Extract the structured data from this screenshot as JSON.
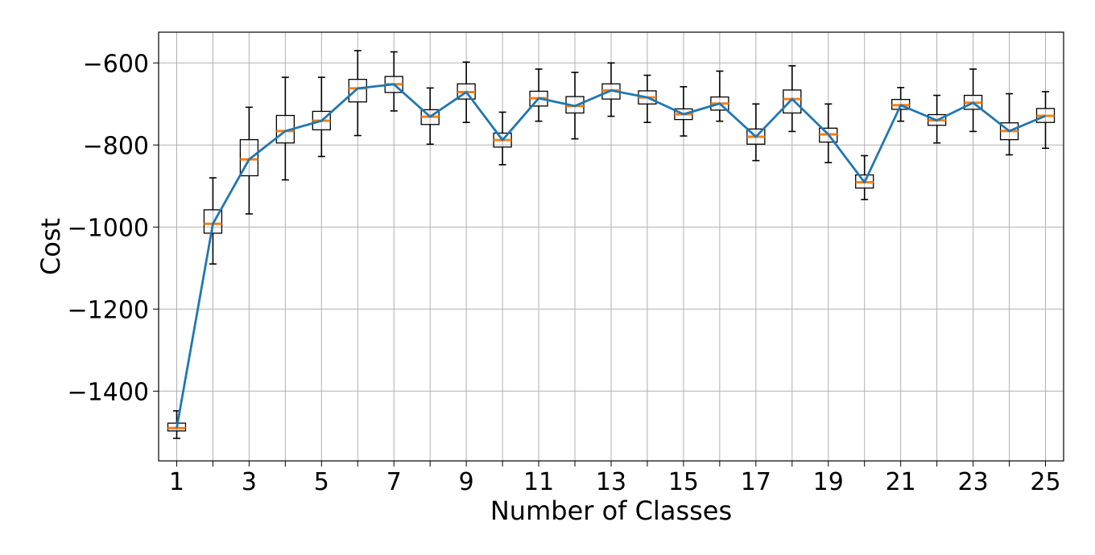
{
  "chart_data": {
    "type": "box",
    "title": "",
    "xlabel": "Number of Classes",
    "ylabel": "Cost",
    "x": [
      1,
      2,
      3,
      4,
      5,
      6,
      7,
      8,
      9,
      10,
      11,
      12,
      13,
      14,
      15,
      16,
      17,
      18,
      19,
      20,
      21,
      22,
      23,
      24,
      25
    ],
    "xlim": [
      0.5,
      25.5
    ],
    "ylim": [
      -1570,
      -525
    ],
    "x_tick_labels": [
      1,
      3,
      5,
      7,
      9,
      11,
      13,
      15,
      17,
      19,
      21,
      23,
      25
    ],
    "y_ticks": [
      -600,
      -800,
      -1000,
      -1200,
      -1400
    ],
    "y_tick_labels": [
      "−600",
      "−800",
      "−1000",
      "−1200",
      "−1400"
    ],
    "grid": true,
    "series": [
      {
        "boxes": [
          {
            "x": 1,
            "whisker_low": -1515,
            "q1": -1497,
            "median": -1490,
            "q3": -1478,
            "whisker_high": -1448
          },
          {
            "x": 2,
            "whisker_low": -1090,
            "q1": -1015,
            "median": -992,
            "q3": -958,
            "whisker_high": -880
          },
          {
            "x": 3,
            "whisker_low": -968,
            "q1": -875,
            "median": -835,
            "q3": -787,
            "whisker_high": -708
          },
          {
            "x": 4,
            "whisker_low": -885,
            "q1": -795,
            "median": -766,
            "q3": -728,
            "whisker_high": -635
          },
          {
            "x": 5,
            "whisker_low": -828,
            "q1": -763,
            "median": -741,
            "q3": -718,
            "whisker_high": -635
          },
          {
            "x": 6,
            "whisker_low": -777,
            "q1": -695,
            "median": -662,
            "q3": -640,
            "whisker_high": -570
          },
          {
            "x": 7,
            "whisker_low": -717,
            "q1": -672,
            "median": -652,
            "q3": -633,
            "whisker_high": -573
          },
          {
            "x": 8,
            "whisker_low": -798,
            "q1": -750,
            "median": -731,
            "q3": -714,
            "whisker_high": -661
          },
          {
            "x": 9,
            "whisker_low": -745,
            "q1": -688,
            "median": -671,
            "q3": -651,
            "whisker_high": -598
          },
          {
            "x": 10,
            "whisker_low": -848,
            "q1": -805,
            "median": -788,
            "q3": -771,
            "whisker_high": -720
          },
          {
            "x": 11,
            "whisker_low": -742,
            "q1": -705,
            "median": -686,
            "q3": -669,
            "whisker_high": -615
          },
          {
            "x": 12,
            "whisker_low": -785,
            "q1": -722,
            "median": -705,
            "q3": -682,
            "whisker_high": -623
          },
          {
            "x": 13,
            "whisker_low": -730,
            "q1": -688,
            "median": -667,
            "q3": -651,
            "whisker_high": -600
          },
          {
            "x": 14,
            "whisker_low": -745,
            "q1": -700,
            "median": -684,
            "q3": -668,
            "whisker_high": -630
          },
          {
            "x": 15,
            "whisker_low": -778,
            "q1": -738,
            "median": -725,
            "q3": -712,
            "whisker_high": -658
          },
          {
            "x": 16,
            "whisker_low": -742,
            "q1": -715,
            "median": -699,
            "q3": -683,
            "whisker_high": -620
          },
          {
            "x": 17,
            "whisker_low": -838,
            "q1": -798,
            "median": -780,
            "q3": -761,
            "whisker_high": -700
          },
          {
            "x": 18,
            "whisker_low": -767,
            "q1": -722,
            "median": -688,
            "q3": -666,
            "whisker_high": -607
          },
          {
            "x": 19,
            "whisker_low": -843,
            "q1": -793,
            "median": -774,
            "q3": -759,
            "whisker_high": -700
          },
          {
            "x": 20,
            "whisker_low": -933,
            "q1": -905,
            "median": -891,
            "q3": -873,
            "whisker_high": -826
          },
          {
            "x": 21,
            "whisker_low": -742,
            "q1": -713,
            "median": -703,
            "q3": -689,
            "whisker_high": -660
          },
          {
            "x": 22,
            "whisker_low": -795,
            "q1": -752,
            "median": -740,
            "q3": -726,
            "whisker_high": -679
          },
          {
            "x": 23,
            "whisker_low": -767,
            "q1": -713,
            "median": -697,
            "q3": -679,
            "whisker_high": -615
          },
          {
            "x": 24,
            "whisker_low": -824,
            "q1": -787,
            "median": -766,
            "q3": -746,
            "whisker_high": -675
          },
          {
            "x": 25,
            "whisker_low": -808,
            "q1": -745,
            "median": -729,
            "q3": -711,
            "whisker_high": -670
          }
        ],
        "mean_line": [
          -1490,
          -992,
          -835,
          -766,
          -741,
          -662,
          -652,
          -731,
          -671,
          -788,
          -686,
          -705,
          -667,
          -684,
          -725,
          -699,
          -780,
          -688,
          -774,
          -891,
          -703,
          -740,
          -697,
          -766,
          -729
        ]
      }
    ],
    "colors": {
      "box": "#000000",
      "median": "#ff7f0e",
      "line": "#1f77b4",
      "grid": "#b0b0b0"
    }
  }
}
